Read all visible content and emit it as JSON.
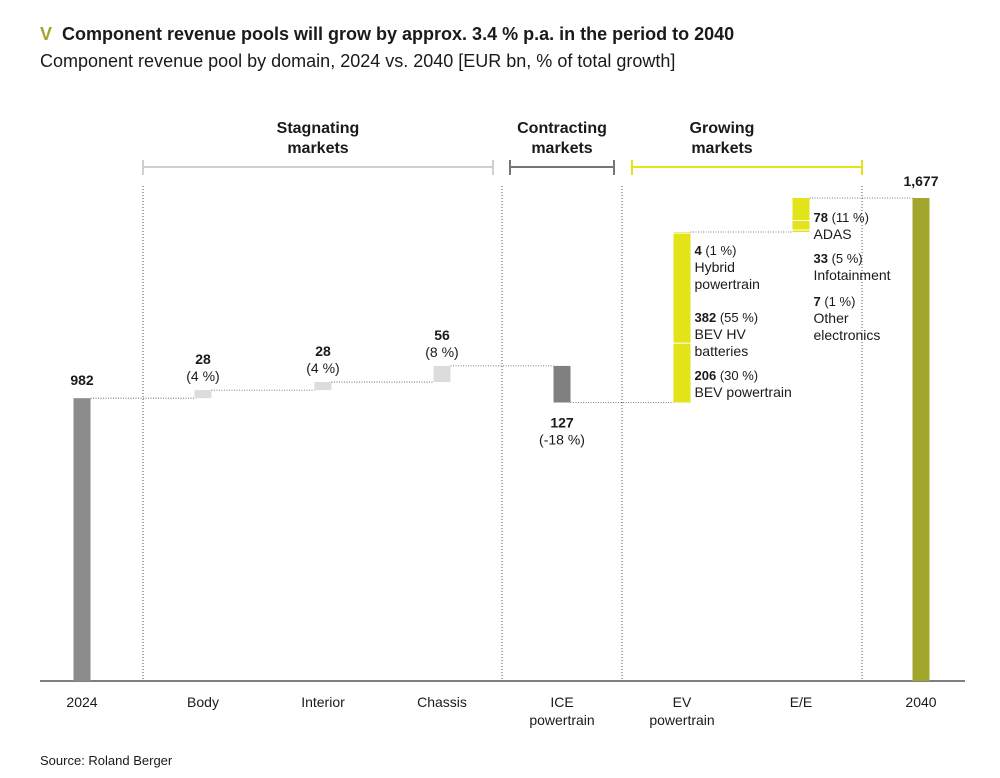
{
  "title": {
    "marker": "V",
    "text": "Component revenue pools will grow by approx. 3.4 % p.a. in the period to 2040"
  },
  "subtitle": "Component revenue pool by domain, 2024 vs. 2040 [EUR bn, % of total growth]",
  "source": "Source: Roland Berger",
  "colors": {
    "total": "#8c8c8e",
    "total_2040": "#a3a62c",
    "stagnating": "#dcdcdc",
    "contracting": "#808083",
    "growing": "#e3e31a"
  },
  "groups": [
    {
      "key": "stagnating",
      "label_lines": [
        "Stagnating",
        "markets"
      ]
    },
    {
      "key": "contracting",
      "label_lines": [
        "Contracting",
        "markets"
      ]
    },
    {
      "key": "growing",
      "label_lines": [
        "Growing",
        "markets"
      ]
    }
  ],
  "chart_data": {
    "type": "bar",
    "subtype": "waterfall",
    "ylim": [
      0,
      1700
    ],
    "categories": [
      {
        "key": "2024",
        "label_lines": [
          "2024"
        ]
      },
      {
        "key": "body",
        "label_lines": [
          "Body"
        ]
      },
      {
        "key": "interior",
        "label_lines": [
          "Interior"
        ]
      },
      {
        "key": "chassis",
        "label_lines": [
          "Chassis"
        ]
      },
      {
        "key": "ice",
        "label_lines": [
          "ICE",
          "powertrain"
        ]
      },
      {
        "key": "ev",
        "label_lines": [
          "EV",
          "powertrain"
        ]
      },
      {
        "key": "ee",
        "label_lines": [
          "E/E"
        ]
      },
      {
        "key": "2040",
        "label_lines": [
          "2040"
        ]
      }
    ],
    "totals": [
      {
        "category": "2024",
        "value": 982,
        "label": "982"
      },
      {
        "category": "2040",
        "value": 1677,
        "label": "1,677"
      }
    ],
    "steps": [
      {
        "category": "body",
        "group": "stagnating",
        "value": 28,
        "value_label": "28",
        "pct_label": "(4 %)"
      },
      {
        "category": "interior",
        "group": "stagnating",
        "value": 28,
        "value_label": "28",
        "pct_label": "(4 %)"
      },
      {
        "category": "chassis",
        "group": "stagnating",
        "value": 56,
        "value_label": "56",
        "pct_label": "(8 %)"
      },
      {
        "category": "ice",
        "group": "contracting",
        "value": -127,
        "value_label": "127",
        "pct_label": "(-18 %)"
      },
      {
        "category": "ev",
        "group": "growing",
        "segments": [
          {
            "value": 206,
            "value_label": "206",
            "pct_label": "(30 %)",
            "name_lines": [
              "BEV powertrain"
            ]
          },
          {
            "value": 382,
            "value_label": "382",
            "pct_label": "(55 %)",
            "name_lines": [
              "BEV HV",
              "batteries"
            ]
          },
          {
            "value": 4,
            "value_label": "4",
            "pct_label": "(1 %)",
            "name_lines": [
              "Hybrid",
              "powertrain"
            ]
          }
        ]
      },
      {
        "category": "ee",
        "group": "growing",
        "segments": [
          {
            "value": 7,
            "value_label": "7",
            "pct_label": "(1 %)",
            "name_lines": [
              "Other",
              "electronics"
            ]
          },
          {
            "value": 33,
            "value_label": "33",
            "pct_label": "(5 %)",
            "name_lines": [
              "Infotainment"
            ]
          },
          {
            "value": 78,
            "value_label": "78",
            "pct_label": "(11 %)",
            "name_lines": [
              "ADAS"
            ]
          }
        ]
      }
    ]
  }
}
